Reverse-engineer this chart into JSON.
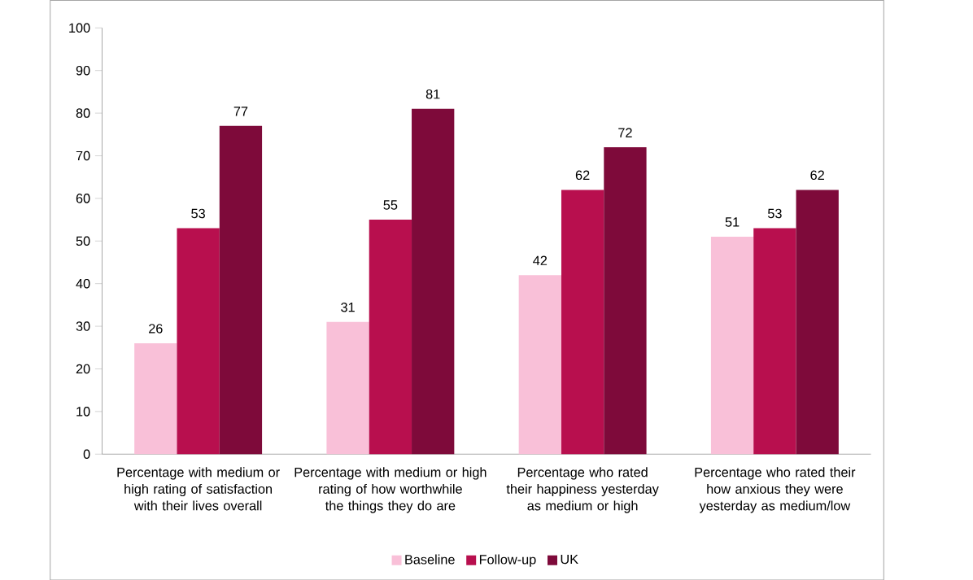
{
  "chart_data": {
    "type": "bar",
    "categories": [
      "Percentage with medium or high rating of satisfaction with their lives overall",
      "Percentage with medium or high rating of how worthwhile the things they do are",
      "Percentage who rated their happiness yesterday as medium or high",
      "Percentage who rated their how anxious they were yesterday as medium/low"
    ],
    "series": [
      {
        "name": "Baseline",
        "color": "#f9c0d8",
        "values": [
          26,
          31,
          42,
          51
        ]
      },
      {
        "name": "Follow-up",
        "color": "#b80f4e",
        "values": [
          53,
          55,
          62,
          53
        ]
      },
      {
        "name": "UK",
        "color": "#7e0a3a",
        "values": [
          77,
          81,
          72,
          62
        ]
      }
    ],
    "ylim": [
      0,
      100
    ],
    "yticks": [
      0,
      10,
      20,
      30,
      40,
      50,
      60,
      70,
      80,
      90,
      100
    ],
    "data_labels": true,
    "legend": "bottom",
    "grid": false
  }
}
